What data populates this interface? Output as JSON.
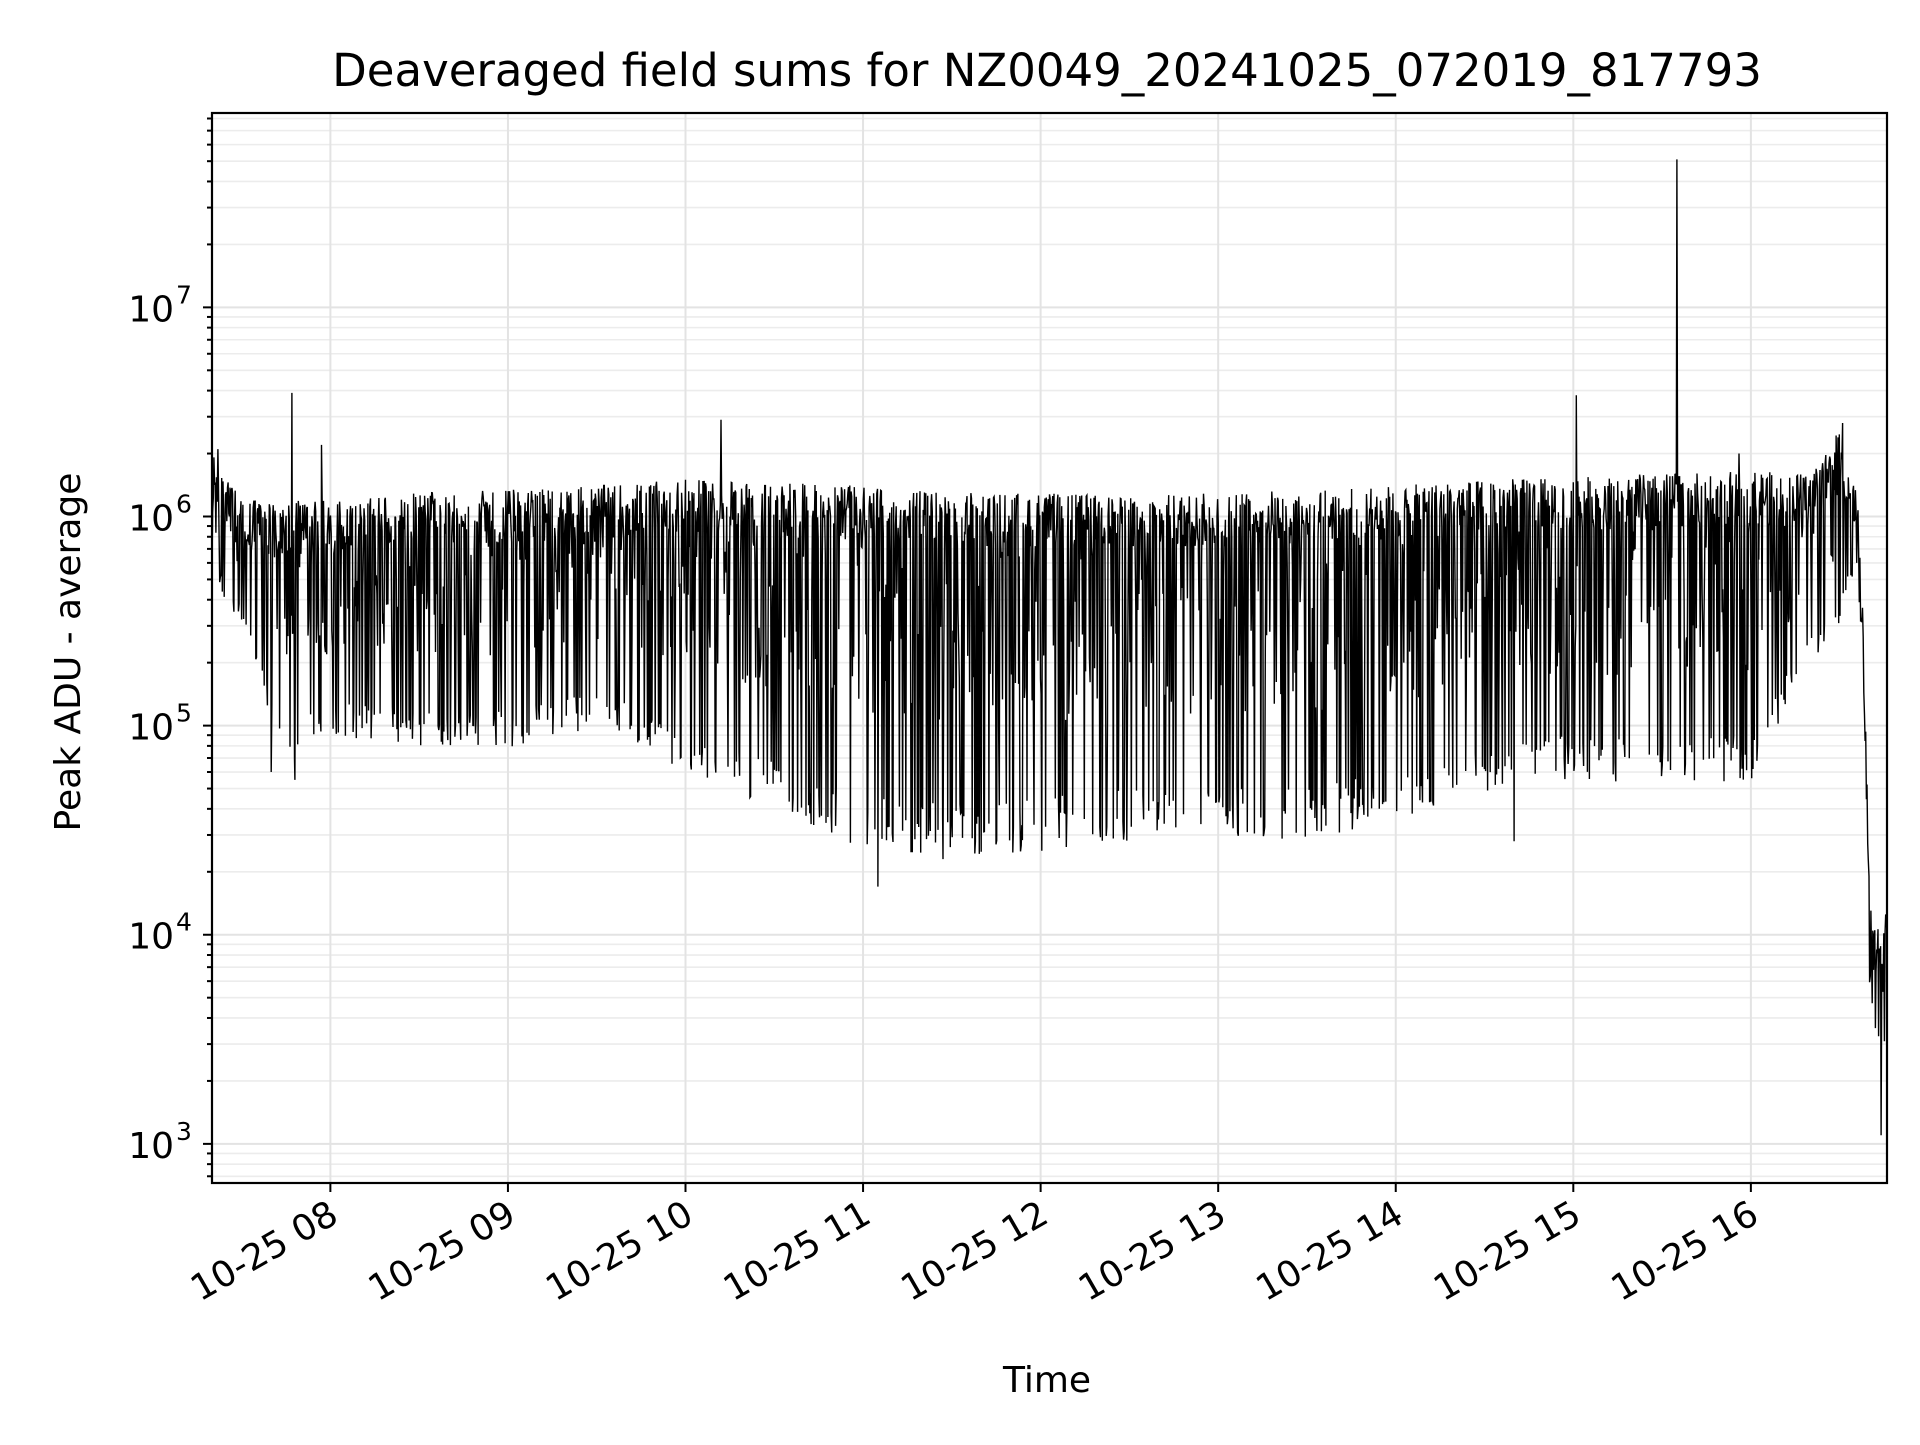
{
  "chart_data": {
    "type": "line",
    "title": "Deaveraged field sums for NZ0049_20241025_072019_817793",
    "xlabel": "Time",
    "ylabel": "Peak ADU - average",
    "yscale": "log",
    "grid": true,
    "xlim": [
      "2024-10-25 07:20",
      "2024-10-25 16:46"
    ],
    "ylim": [
      650,
      85000000
    ],
    "x_ticks": [
      {
        "value": "2024-10-25 08:00",
        "label": "10-25 08"
      },
      {
        "value": "2024-10-25 09:00",
        "label": "10-25 09"
      },
      {
        "value": "2024-10-25 10:00",
        "label": "10-25 10"
      },
      {
        "value": "2024-10-25 11:00",
        "label": "10-25 11"
      },
      {
        "value": "2024-10-25 12:00",
        "label": "10-25 12"
      },
      {
        "value": "2024-10-25 13:00",
        "label": "10-25 13"
      },
      {
        "value": "2024-10-25 14:00",
        "label": "10-25 14"
      },
      {
        "value": "2024-10-25 15:00",
        "label": "10-25 15"
      },
      {
        "value": "2024-10-25 16:00",
        "label": "10-25 16"
      }
    ],
    "y_ticks": [
      {
        "value": 1000,
        "base": "10",
        "exp": "3"
      },
      {
        "value": 10000,
        "base": "10",
        "exp": "4"
      },
      {
        "value": 100000,
        "base": "10",
        "exp": "5"
      },
      {
        "value": 1000000,
        "base": "10",
        "exp": "6"
      },
      {
        "value": 10000000,
        "base": "10",
        "exp": "7"
      }
    ],
    "series_style": {
      "color": "#000000"
    },
    "envelope": {
      "x": [
        "2024-10-25 07:20",
        "2024-10-25 07:30",
        "2024-10-25 07:45",
        "2024-10-25 08:00",
        "2024-10-25 08:30",
        "2024-10-25 09:00",
        "2024-10-25 09:30",
        "2024-10-25 10:00",
        "2024-10-25 10:30",
        "2024-10-25 11:00",
        "2024-10-25 11:30",
        "2024-10-25 12:00",
        "2024-10-25 12:30",
        "2024-10-25 13:00",
        "2024-10-25 13:30",
        "2024-10-25 14:00",
        "2024-10-25 14:30",
        "2024-10-25 15:00",
        "2024-10-25 15:30",
        "2024-10-25 16:00",
        "2024-10-25 16:20",
        "2024-10-25 16:30",
        "2024-10-25 16:36",
        "2024-10-25 16:38",
        "2024-10-25 16:40",
        "2024-10-25 16:42",
        "2024-10-25 16:44",
        "2024-10-25 16:46"
      ],
      "upper": [
        2000000,
        1200000,
        1200000,
        1200000,
        1300000,
        1350000,
        1400000,
        1500000,
        1450000,
        1400000,
        1300000,
        1300000,
        1250000,
        1300000,
        1350000,
        1400000,
        1500000,
        1550000,
        1600000,
        1650000,
        1600000,
        2600000,
        1400000,
        300000,
        20000,
        12000,
        12000,
        15000
      ],
      "lower": [
        500000,
        300000,
        60000,
        90000,
        80000,
        75000,
        100000,
        60000,
        40000,
        25000,
        23000,
        25000,
        28000,
        30000,
        28000,
        35000,
        45000,
        55000,
        50000,
        55000,
        200000,
        300000,
        600000,
        150000,
        6000,
        3000,
        2500,
        3000
      ]
    },
    "spikes": [
      {
        "x": "2024-10-25 07:22",
        "y": 2100000
      },
      {
        "x": "2024-10-25 07:47",
        "y": 3900000
      },
      {
        "x": "2024-10-25 07:57",
        "y": 2200000
      },
      {
        "x": "2024-10-25 10:12",
        "y": 2900000
      },
      {
        "x": "2024-10-25 15:01",
        "y": 3800000
      },
      {
        "x": "2024-10-25 15:35",
        "y": 51000000
      },
      {
        "x": "2024-10-25 15:56",
        "y": 2000000
      },
      {
        "x": "2024-10-25 16:31",
        "y": 2800000
      }
    ],
    "dips": [
      {
        "x": "2024-10-25 07:40",
        "y": 60000
      },
      {
        "x": "2024-10-25 07:48",
        "y": 55000
      },
      {
        "x": "2024-10-25 11:05",
        "y": 17000
      },
      {
        "x": "2024-10-25 11:27",
        "y": 23000
      },
      {
        "x": "2024-10-25 14:40",
        "y": 28000
      },
      {
        "x": "2024-10-25 16:44",
        "y": 1100.0
      }
    ]
  }
}
